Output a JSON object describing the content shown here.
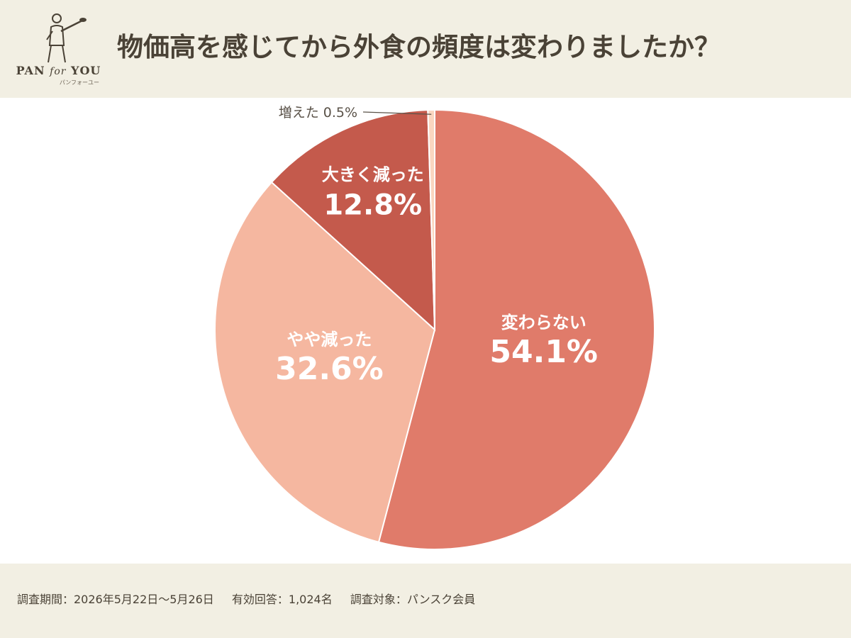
{
  "header": {
    "title": "物価高を感じてから外食の頻度は変わりましたか？",
    "logo": {
      "icon": "baker-with-peel-icon",
      "main_pan": "PAN",
      "main_for": "for",
      "main_you": "YOU",
      "sub": "パンフォーユー"
    }
  },
  "chart_data": {
    "type": "pie",
    "slices": [
      {
        "label": "変わらない",
        "value": 54.1,
        "value_label": "54.1%",
        "color": "#e07b6a"
      },
      {
        "label": "やや減った",
        "value": 32.6,
        "value_label": "32.6%",
        "color": "#f5b7a0"
      },
      {
        "label": "大きく減った",
        "value": 12.8,
        "value_label": "12.8%",
        "color": "#c45a4c"
      },
      {
        "label": "増えた",
        "value": 0.5,
        "value_label": "0.5%",
        "color": "#fad6c0"
      }
    ],
    "start": "12 o'clock",
    "direction": "clockwise",
    "legend": "none"
  },
  "footer": {
    "period": "調査期間：2026年5月22日〜5月26日",
    "responses": "有効回答：1,024名",
    "target": "調査対象：パンスク会員"
  }
}
